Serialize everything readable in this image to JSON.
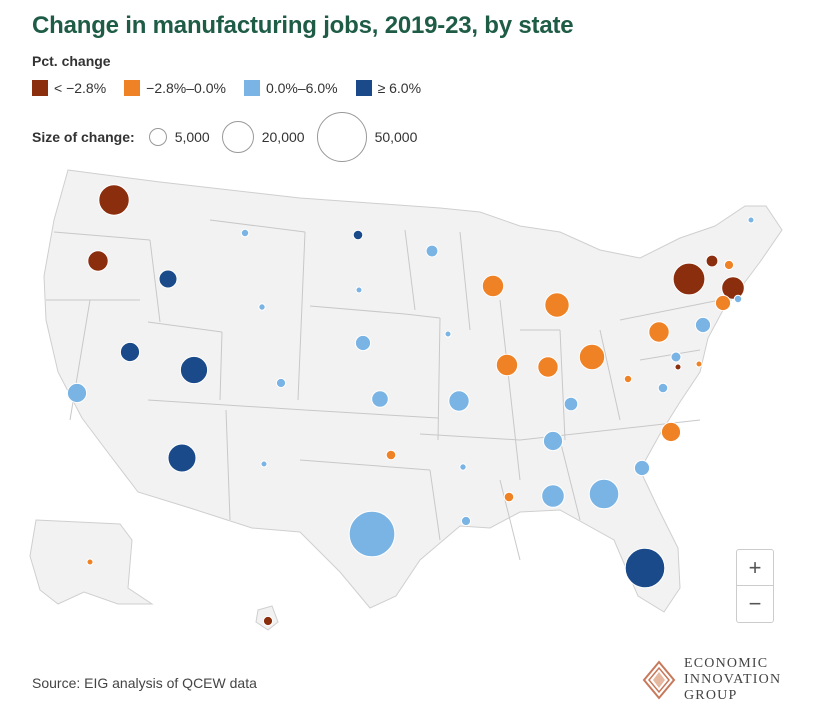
{
  "title": "Change in manufacturing jobs, 2019-23, by state",
  "legend": {
    "heading": "Pct. change",
    "items": [
      {
        "label": "< −2.8%",
        "color": "#8b2e0e"
      },
      {
        "label": "−2.8%–0.0%",
        "color": "#f08226"
      },
      {
        "label": "0.0%–6.0%",
        "color": "#7ab4e4"
      },
      {
        "label": "≥ 6.0%",
        "color": "#1a4a8a"
      }
    ],
    "size_heading": "Size of change:",
    "sizes": [
      {
        "label": "5,000",
        "value": 5000
      },
      {
        "label": "20,000",
        "value": 20000
      },
      {
        "label": "50,000",
        "value": 50000
      }
    ]
  },
  "states": [
    {
      "name": "Washington",
      "category": 0,
      "size": 20000
    },
    {
      "name": "Oregon",
      "category": 0,
      "size": 9000
    },
    {
      "name": "Idaho",
      "category": 3,
      "size": 7000
    },
    {
      "name": "Montana",
      "category": 2,
      "size": 1200
    },
    {
      "name": "North Dakota",
      "category": 3,
      "size": 2000
    },
    {
      "name": "Minnesota",
      "category": 2,
      "size": 3000
    },
    {
      "name": "Wisconsin",
      "category": 1,
      "size": 10000
    },
    {
      "name": "Michigan",
      "category": 1,
      "size": 13000
    },
    {
      "name": "New York",
      "category": 0,
      "size": 22000
    },
    {
      "name": "Vermont",
      "category": 0,
      "size": 3000
    },
    {
      "name": "New Hampshire",
      "category": 1,
      "size": 1800
    },
    {
      "name": "Maine",
      "category": 2,
      "size": 600
    },
    {
      "name": "Massachusetts",
      "category": 0,
      "size": 11000
    },
    {
      "name": "Connecticut",
      "category": 1,
      "size": 5000
    },
    {
      "name": "Rhode Island",
      "category": 2,
      "size": 1200
    },
    {
      "name": "Wyoming",
      "category": 2,
      "size": 900
    },
    {
      "name": "South Dakota",
      "category": 2,
      "size": 700
    },
    {
      "name": "Nebraska",
      "category": 2,
      "size": 5000
    },
    {
      "name": "Iowa",
      "category": 2,
      "size": 600
    },
    {
      "name": "Illinois",
      "category": 1,
      "size": 10000
    },
    {
      "name": "Indiana",
      "category": 1,
      "size": 9000
    },
    {
      "name": "Ohio",
      "category": 1,
      "size": 14000
    },
    {
      "name": "Pennsylvania",
      "category": 1,
      "size": 9000
    },
    {
      "name": "New Jersey",
      "category": 2,
      "size": 5000
    },
    {
      "name": "Nevada",
      "category": 3,
      "size": 8000
    },
    {
      "name": "Utah",
      "category": 3,
      "size": 16000
    },
    {
      "name": "Colorado",
      "category": 2,
      "size": 1800
    },
    {
      "name": "Kansas",
      "category": 2,
      "size": 6000
    },
    {
      "name": "Missouri",
      "category": 2,
      "size": 9000
    },
    {
      "name": "Kentucky",
      "category": 2,
      "size": 4000
    },
    {
      "name": "West Virginia",
      "category": 1,
      "size": 1200
    },
    {
      "name": "Maryland",
      "category": 2,
      "size": 2200
    },
    {
      "name": "Delaware",
      "category": 0,
      "size": 700
    },
    {
      "name": "District of Columbia",
      "category": 1,
      "size": 700
    },
    {
      "name": "California",
      "category": 2,
      "size": 8000
    },
    {
      "name": "Virginia",
      "category": 2,
      "size": 2000
    },
    {
      "name": "Arizona",
      "category": 3,
      "size": 17000
    },
    {
      "name": "New Mexico",
      "category": 2,
      "size": 500
    },
    {
      "name": "Oklahoma",
      "category": 1,
      "size": 2000
    },
    {
      "name": "Arkansas",
      "category": 2,
      "size": 900
    },
    {
      "name": "Tennessee",
      "category": 2,
      "size": 8000
    },
    {
      "name": "North Carolina",
      "category": 1,
      "size": 8000
    },
    {
      "name": "South Carolina",
      "category": 2,
      "size": 5000
    },
    {
      "name": "Mississippi",
      "category": 1,
      "size": 2000
    },
    {
      "name": "Alabama",
      "category": 2,
      "size": 11000
    },
    {
      "name": "Georgia",
      "category": 2,
      "size": 19000
    },
    {
      "name": "Louisiana",
      "category": 2,
      "size": 1800
    },
    {
      "name": "Texas",
      "category": 2,
      "size": 45000
    },
    {
      "name": "Florida",
      "category": 3,
      "size": 34000
    },
    {
      "name": "Alaska",
      "category": 1,
      "size": 500
    },
    {
      "name": "Hawaii",
      "category": 0,
      "size": 1800
    }
  ],
  "zoom": {
    "in_label": "+",
    "out_label": "−"
  },
  "source": "Source: EIG analysis of QCEW data",
  "logo": {
    "line1": "ECONOMIC",
    "line2": "INNOVATION",
    "line3": "GROUP"
  }
}
